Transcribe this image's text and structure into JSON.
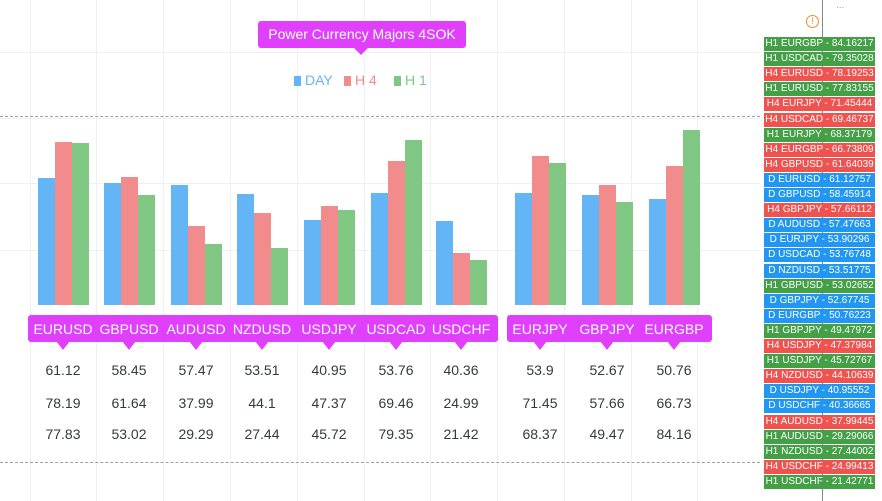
{
  "title": "Power Currency Majors 4SOK",
  "legend": [
    {
      "label": "DAY",
      "color": "#64b5f6"
    },
    {
      "label": "H 4",
      "color": "#f28b8b"
    },
    {
      "label": "H 1",
      "color": "#81c784"
    }
  ],
  "top_clipped_text": "...",
  "chart_data": {
    "type": "bar",
    "categories": [
      "EURUSD",
      "GBPUSD",
      "AUDUSD",
      "NZDUSD",
      "USDJPY",
      "USDCAD",
      "USDCHF",
      "EURJPY",
      "GBPJPY",
      "EURGBP"
    ],
    "series": [
      {
        "name": "DAY",
        "values": [
          61.12,
          58.45,
          57.47,
          53.51,
          40.95,
          53.76,
          40.36,
          53.9,
          52.67,
          50.76
        ]
      },
      {
        "name": "H 4",
        "values": [
          78.19,
          61.64,
          37.99,
          44.1,
          47.37,
          69.46,
          24.99,
          71.45,
          57.66,
          66.73
        ]
      },
      {
        "name": "H 1",
        "values": [
          77.83,
          53.02,
          29.29,
          27.44,
          45.72,
          79.35,
          21.42,
          68.37,
          49.47,
          84.16
        ]
      }
    ],
    "value_rows": [
      [
        "61.12",
        "58.45",
        "57.47",
        "53.51",
        "40.95",
        "53.76",
        "40.36",
        "53.9",
        "52.67",
        "50.76"
      ],
      [
        "78.19",
        "61.64",
        "37.99",
        "44.1",
        "47.37",
        "69.46",
        "24.99",
        "71.45",
        "57.66",
        "66.73"
      ],
      [
        "77.83",
        "53.02",
        "29.29",
        "27.44",
        "45.72",
        "79.35",
        "21.42",
        "68.37",
        "49.47",
        "84.16"
      ]
    ]
  },
  "price_tags": [
    {
      "text": "H1 EURGBP - 84.16217",
      "color": "#43a047"
    },
    {
      "text": "H1 USDCAD - 79.35028",
      "color": "#43a047"
    },
    {
      "text": "H4 EURUSD - 78.19253",
      "color": "#ef5350"
    },
    {
      "text": "H1 EURUSD - 77.83155",
      "color": "#43a047"
    },
    {
      "text": "H4 EURJPY - 71.45444",
      "color": "#ef5350"
    },
    {
      "text": "H4 USDCAD - 69.46737",
      "color": "#ef5350"
    },
    {
      "text": "H1 EURJPY - 68.37179",
      "color": "#43a047"
    },
    {
      "text": "H4 EURGBP - 66.73809",
      "color": "#ef5350"
    },
    {
      "text": "H4 GBPUSD - 61.64039",
      "color": "#ef5350"
    },
    {
      "text": "D EURUSD - 61.12757",
      "color": "#2196f3"
    },
    {
      "text": "D GBPUSD - 58.45914",
      "color": "#2196f3"
    },
    {
      "text": "H4 GBPJPY - 57.66112",
      "color": "#ef5350"
    },
    {
      "text": "D AUDUSD - 57.47663",
      "color": "#2196f3"
    },
    {
      "text": "D EURJPY - 53.90296",
      "color": "#2196f3"
    },
    {
      "text": "D USDCAD - 53.76748",
      "color": "#2196f3"
    },
    {
      "text": "D NZDUSD - 53.51775",
      "color": "#2196f3"
    },
    {
      "text": "H1 GBPUSD - 53.02652",
      "color": "#43a047"
    },
    {
      "text": "D GBPJPY - 52.67745",
      "color": "#2196f3"
    },
    {
      "text": "D EURGBP - 50.76223",
      "color": "#2196f3"
    },
    {
      "text": "H1 GBPJPY - 49.47972",
      "color": "#43a047"
    },
    {
      "text": "H4 USDJPY - 47.37984",
      "color": "#ef5350"
    },
    {
      "text": "H1 USDJPY - 45.72767",
      "color": "#43a047"
    },
    {
      "text": "H4 NZDUSD - 44.10639",
      "color": "#ef5350"
    },
    {
      "text": "D USDJPY - 40.95552",
      "color": "#2196f3"
    },
    {
      "text": "D USDCHF - 40.36665",
      "color": "#2196f3"
    },
    {
      "text": "H4 AUDUSD - 37.99445",
      "color": "#ef5350"
    },
    {
      "text": "H1 AUDUSD - 29.29066",
      "color": "#43a047"
    },
    {
      "text": "H1 NZDUSD - 27.44002",
      "color": "#43a047"
    },
    {
      "text": "H4 USDCHF - 24.99413",
      "color": "#ef5350"
    },
    {
      "text": "H1 USDCHF - 21.42771",
      "color": "#43a047"
    }
  ]
}
